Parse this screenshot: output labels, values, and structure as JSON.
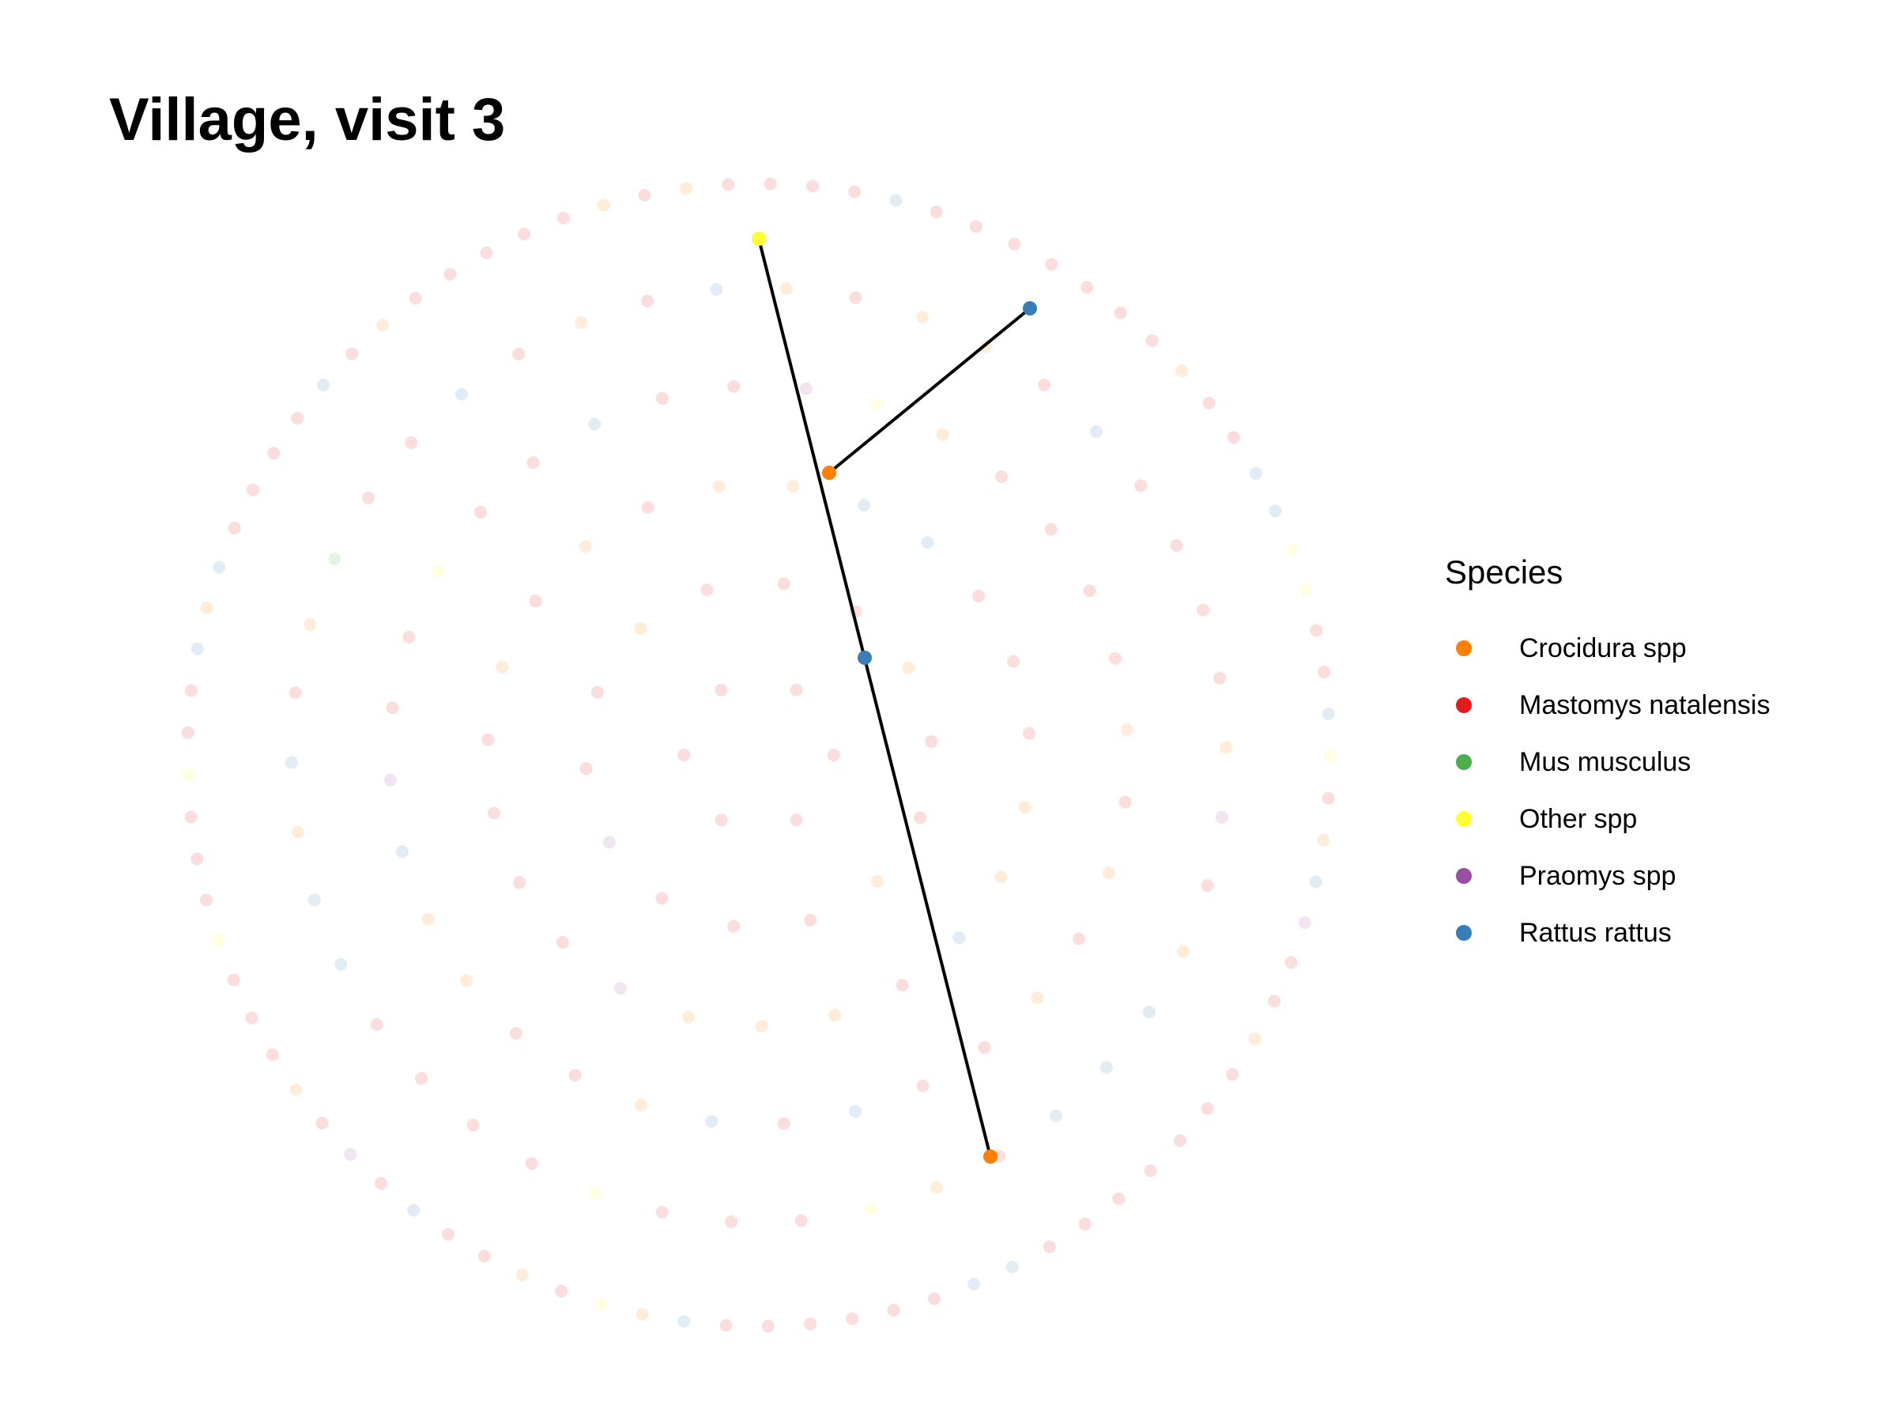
{
  "title": "Village, visit 3",
  "legend": {
    "title": "Species",
    "items": [
      {
        "label": "Crocidura spp",
        "color": "#FF7F00"
      },
      {
        "label": "Mastomys natalensis",
        "color": "#E41A1C"
      },
      {
        "label": "Mus musculus",
        "color": "#4DAF4A"
      },
      {
        "label": "Other spp",
        "color": "#FFFF33"
      },
      {
        "label": "Praomys spp",
        "color": "#984EA3"
      },
      {
        "label": "Rattus rattus",
        "color": "#377EB8"
      }
    ]
  },
  "network": {
    "node_counts": {
      "Crocidura spp": 38,
      "Mastomys natalensis": 118,
      "Mus musculus": 1,
      "Other spp": 10,
      "Praomys spp": 7,
      "Rattus rattus": 28
    },
    "highlighted": [
      {
        "id": "a",
        "species": "Other spp"
      },
      {
        "id": "b",
        "species": "Rattus rattus"
      },
      {
        "id": "c",
        "species": "Crocidura spp"
      },
      {
        "id": "d",
        "species": "Rattus rattus"
      },
      {
        "id": "e",
        "species": "Crocidura spp"
      }
    ],
    "edges": [
      [
        "a",
        "e"
      ],
      [
        "b",
        "c"
      ]
    ]
  }
}
